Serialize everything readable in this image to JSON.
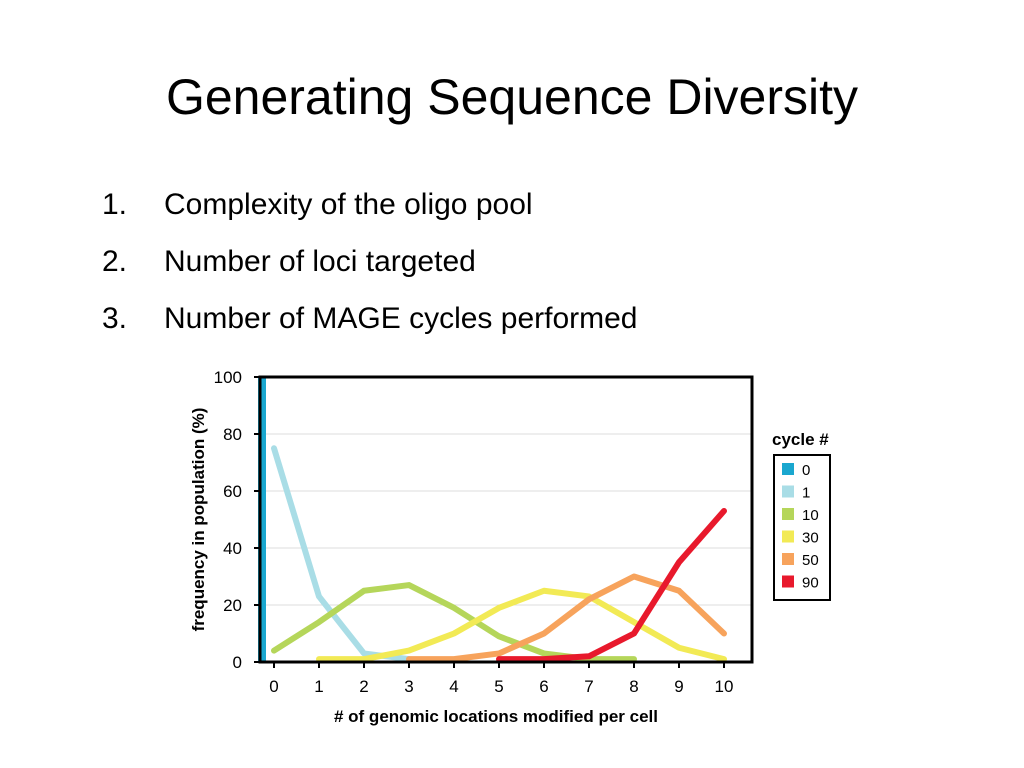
{
  "slide": {
    "title": "Generating Sequence Diversity",
    "bullets": [
      {
        "num": "1.",
        "text": "Complexity of the oligo pool"
      },
      {
        "num": "2.",
        "text": "Number of loci targeted"
      },
      {
        "num": "3.",
        "text": "Number of MAGE cycles performed"
      }
    ]
  },
  "chart_data": {
    "type": "line",
    "xlabel": "# of genomic locations modified per cell",
    "ylabel": "frequency in population (%)",
    "xlim": [
      0,
      10
    ],
    "ylim": [
      0,
      100
    ],
    "xticks": [
      "0",
      "1",
      "2",
      "3",
      "4",
      "5",
      "6",
      "7",
      "8",
      "9",
      "10"
    ],
    "yticks": [
      "0",
      "20",
      "40",
      "60",
      "80",
      "100"
    ],
    "grid": true,
    "legend": {
      "title": "cycle #",
      "placement": "right"
    },
    "series": [
      {
        "name": "0",
        "color": "#1aa7cf",
        "x": [
          0
        ],
        "y": [
          100
        ],
        "style": "bar"
      },
      {
        "name": "1",
        "color": "#a9dde6",
        "x": [
          0,
          1,
          2,
          3
        ],
        "y": [
          75,
          23,
          3,
          1
        ]
      },
      {
        "name": "10",
        "color": "#b5d65a",
        "x": [
          0,
          1,
          2,
          3,
          4,
          5,
          6,
          7,
          8
        ],
        "y": [
          4,
          14,
          25,
          27,
          19,
          9,
          3,
          1,
          1
        ]
      },
      {
        "name": "30",
        "color": "#f2ea55",
        "x": [
          1,
          2,
          3,
          4,
          5,
          6,
          7,
          8,
          9,
          10
        ],
        "y": [
          1,
          1,
          4,
          10,
          19,
          25,
          23,
          14,
          5,
          1
        ]
      },
      {
        "name": "50",
        "color": "#f7a35c",
        "x": [
          3,
          4,
          5,
          6,
          7,
          8,
          9,
          10
        ],
        "y": [
          1,
          1,
          3,
          10,
          22,
          30,
          25,
          10
        ]
      },
      {
        "name": "90",
        "color": "#e8192c",
        "x": [
          5,
          6,
          7,
          8,
          9,
          10
        ],
        "y": [
          1,
          1,
          2,
          10,
          35,
          53
        ]
      }
    ]
  }
}
